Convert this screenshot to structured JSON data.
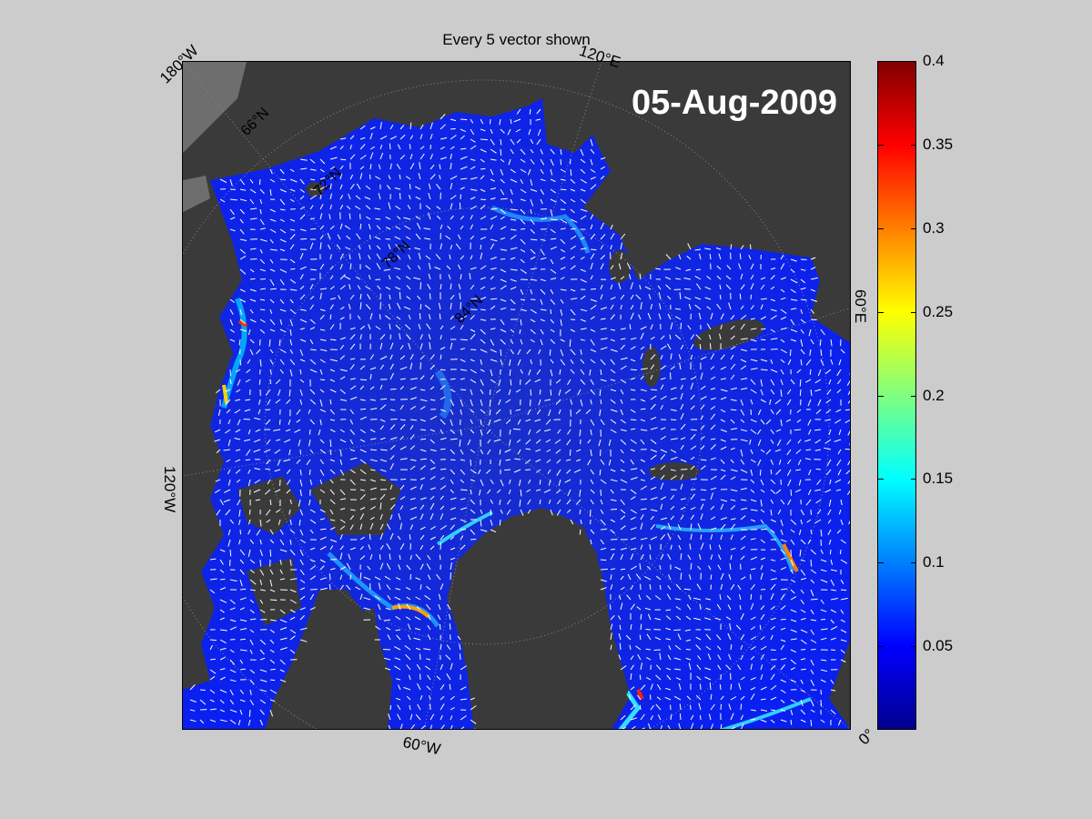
{
  "figure": {
    "title": "Every 5 vector shown",
    "date": "05-Aug-2009"
  },
  "map": {
    "projection": "polar stereographic (north)",
    "longitude_labels": [
      "180°W",
      "120°E",
      "60°E",
      "0°",
      "60°W",
      "120°W"
    ],
    "latitude_labels": [
      "66°N",
      "72°N",
      "78°N",
      "84°N"
    ],
    "colors": {
      "land": "#3a3a3a",
      "land_light": "#6e6e6e",
      "ocean_low": "#0a1cf0",
      "vectors": "#ffffff"
    }
  },
  "colorbar": {
    "colormap": "jet",
    "min": 0,
    "max": 0.4,
    "ticks": [
      "0.05",
      "0.1",
      "0.15",
      "0.2",
      "0.25",
      "0.3",
      "0.35",
      "0.4"
    ]
  }
}
